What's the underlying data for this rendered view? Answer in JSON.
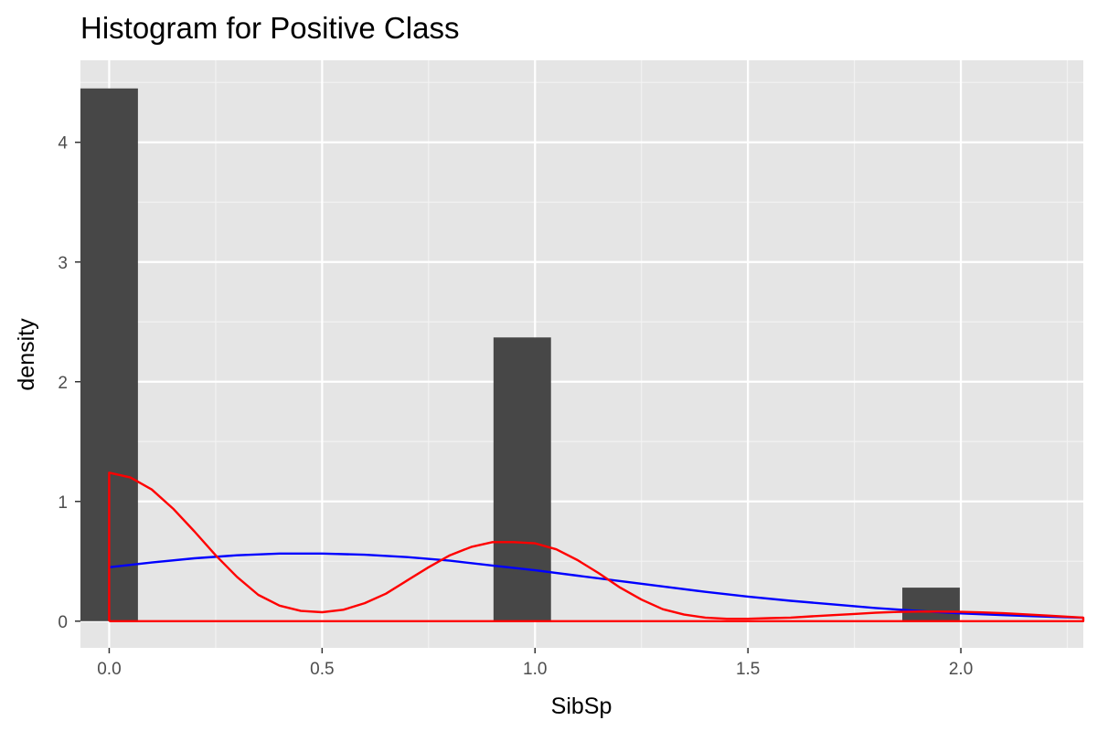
{
  "chart_data": {
    "type": "bar",
    "title": "Histogram for Positive Class",
    "xlabel": "SibSp",
    "ylabel": "density",
    "xlim": [
      -0.0675,
      2.2875
    ],
    "ylim": [
      -0.223,
      4.685
    ],
    "x_ticks": [
      0.0,
      0.5,
      1.0,
      1.5,
      2.0
    ],
    "x_tick_labels": [
      "0.0",
      "0.5",
      "1.0",
      "1.5",
      "2.0"
    ],
    "y_ticks": [
      0,
      1,
      2,
      3,
      4
    ],
    "y_tick_labels": [
      "0",
      "1",
      "2",
      "3",
      "4"
    ],
    "grid": true,
    "panel_background": "#e5e5e5",
    "bars": [
      {
        "x": 0.0,
        "width": 0.135,
        "value": 4.45
      },
      {
        "x": 0.97,
        "width": 0.135,
        "value": 2.37
      },
      {
        "x": 1.93,
        "width": 0.135,
        "value": 0.28
      }
    ],
    "bar_color": "#474747",
    "series": [
      {
        "color": "#0000ff",
        "x": [
          0.0,
          0.1,
          0.2,
          0.3,
          0.4,
          0.5,
          0.6,
          0.7,
          0.8,
          0.9,
          1.0,
          1.1,
          1.2,
          1.3,
          1.4,
          1.5,
          1.6,
          1.7,
          1.8,
          1.9,
          2.0,
          2.1,
          2.2,
          2.2875
        ],
        "y": [
          0.45,
          0.49,
          0.525,
          0.55,
          0.565,
          0.565,
          0.555,
          0.535,
          0.505,
          0.465,
          0.425,
          0.38,
          0.335,
          0.29,
          0.245,
          0.205,
          0.17,
          0.14,
          0.11,
          0.085,
          0.065,
          0.05,
          0.038,
          0.028
        ]
      },
      {
        "color": "#ff0000",
        "x": [
          0.0,
          0.0,
          0.05,
          0.1,
          0.15,
          0.2,
          0.25,
          0.3,
          0.35,
          0.4,
          0.45,
          0.5,
          0.55,
          0.6,
          0.65,
          0.7,
          0.75,
          0.8,
          0.85,
          0.9,
          0.95,
          1.0,
          1.05,
          1.1,
          1.15,
          1.2,
          1.25,
          1.3,
          1.35,
          1.4,
          1.45,
          1.5,
          1.55,
          1.6,
          1.65,
          1.7,
          1.75,
          1.8,
          1.85,
          1.9,
          1.95,
          2.0,
          2.05,
          2.1,
          2.15,
          2.2,
          2.2875,
          2.2875,
          0.0
        ],
        "y": [
          0.0,
          1.24,
          1.2,
          1.1,
          0.94,
          0.75,
          0.55,
          0.37,
          0.22,
          0.13,
          0.085,
          0.075,
          0.095,
          0.15,
          0.23,
          0.34,
          0.45,
          0.55,
          0.62,
          0.66,
          0.66,
          0.65,
          0.6,
          0.51,
          0.4,
          0.28,
          0.18,
          0.1,
          0.055,
          0.03,
          0.02,
          0.02,
          0.025,
          0.03,
          0.04,
          0.05,
          0.06,
          0.07,
          0.077,
          0.08,
          0.08,
          0.078,
          0.073,
          0.066,
          0.057,
          0.047,
          0.03,
          0.0,
          0.0
        ]
      }
    ]
  }
}
